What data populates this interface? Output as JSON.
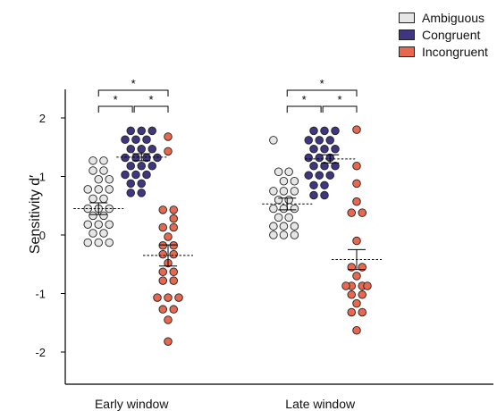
{
  "chart_data": {
    "type": "scatter",
    "ylabel": "Sensitivity d′",
    "ylim": [
      -2.6,
      2.5
    ],
    "yticks": [
      "2",
      "1",
      "0",
      "-1",
      "-2"
    ],
    "groups": [
      "Early window",
      "Late window"
    ],
    "legend": {
      "position": "top-right"
    },
    "significance_markers": [
      "*",
      "*",
      "*",
      "*",
      "*",
      "*"
    ],
    "series": [
      {
        "name": "Ambiguous",
        "color": "#e6e6e6",
        "points": [
          [
            [
              0.25,
              1.27
            ],
            [
              0.5,
              1.27
            ],
            [
              0.25,
              1.1
            ],
            [
              0.5,
              1.1
            ],
            [
              0.38,
              0.95
            ],
            [
              0.63,
              0.95
            ],
            [
              0.13,
              0.78
            ],
            [
              0.38,
              0.78
            ],
            [
              0.63,
              0.78
            ],
            [
              0.25,
              0.62
            ],
            [
              0.5,
              0.62
            ],
            [
              0.13,
              0.45
            ],
            [
              0.38,
              0.45
            ],
            [
              0.63,
              0.45
            ],
            [
              0.25,
              0.33
            ],
            [
              0.5,
              0.33
            ],
            [
              0.13,
              0.18
            ],
            [
              0.38,
              0.18
            ],
            [
              0.63,
              0.18
            ],
            [
              0.25,
              0.03
            ],
            [
              0.5,
              0.03
            ],
            [
              0.13,
              -0.13
            ],
            [
              0.38,
              -0.13
            ],
            [
              0.63,
              -0.13
            ]
          ],
          [
            [
              0.06,
              1.62
            ],
            [
              0.18,
              1.08
            ],
            [
              0.42,
              1.08
            ],
            [
              0.3,
              0.92
            ],
            [
              0.55,
              0.92
            ],
            [
              0.06,
              0.75
            ],
            [
              0.3,
              0.75
            ],
            [
              0.55,
              0.75
            ],
            [
              0.18,
              0.6
            ],
            [
              0.42,
              0.6
            ],
            [
              0.06,
              0.45
            ],
            [
              0.3,
              0.45
            ],
            [
              0.55,
              0.45
            ],
            [
              0.18,
              0.3
            ],
            [
              0.42,
              0.3
            ],
            [
              0.06,
              0.15
            ],
            [
              0.3,
              0.15
            ],
            [
              0.55,
              0.15
            ],
            [
              0.06,
              0.0
            ],
            [
              0.3,
              0.0
            ],
            [
              0.55,
              0.0
            ]
          ]
        ],
        "mean": [
          0.45,
          0.53
        ],
        "sem": [
          0.1,
          0.1
        ]
      },
      {
        "name": "Congruent",
        "color": "#3f3580",
        "points": [
          [
            [
              1.13,
              1.78
            ],
            [
              1.38,
              1.78
            ],
            [
              1.63,
              1.78
            ],
            [
              1.0,
              1.63
            ],
            [
              1.25,
              1.63
            ],
            [
              1.5,
              1.63
            ],
            [
              1.13,
              1.47
            ],
            [
              1.38,
              1.47
            ],
            [
              1.63,
              1.47
            ],
            [
              1.0,
              1.32
            ],
            [
              1.25,
              1.32
            ],
            [
              1.5,
              1.32
            ],
            [
              1.75,
              1.32
            ],
            [
              1.13,
              1.18
            ],
            [
              1.38,
              1.18
            ],
            [
              1.63,
              1.18
            ],
            [
              1.0,
              1.03
            ],
            [
              1.25,
              1.03
            ],
            [
              1.5,
              1.03
            ],
            [
              1.13,
              0.88
            ],
            [
              1.38,
              0.88
            ],
            [
              1.13,
              0.72
            ],
            [
              1.38,
              0.72
            ]
          ],
          [
            [
              1.0,
              1.78
            ],
            [
              1.25,
              1.78
            ],
            [
              1.5,
              1.78
            ],
            [
              0.88,
              1.62
            ],
            [
              1.13,
              1.62
            ],
            [
              1.38,
              1.62
            ],
            [
              1.0,
              1.47
            ],
            [
              1.25,
              1.47
            ],
            [
              1.5,
              1.47
            ],
            [
              0.88,
              1.32
            ],
            [
              1.13,
              1.32
            ],
            [
              1.38,
              1.32
            ],
            [
              1.0,
              1.18
            ],
            [
              1.25,
              1.18
            ],
            [
              1.5,
              1.18
            ],
            [
              0.88,
              1.02
            ],
            [
              1.13,
              1.02
            ],
            [
              1.38,
              1.02
            ],
            [
              1.0,
              0.85
            ],
            [
              1.25,
              0.85
            ],
            [
              1.0,
              0.68
            ],
            [
              1.25,
              0.68
            ]
          ]
        ],
        "mean": [
          1.33,
          1.3
        ],
        "sem": [
          0.06,
          0.07
        ]
      },
      {
        "name": "Incongruent",
        "color": "#e8674f",
        "points": [
          [
            [
              2.0,
              1.68
            ],
            [
              2.0,
              1.43
            ],
            [
              1.88,
              0.43
            ],
            [
              2.13,
              0.43
            ],
            [
              2.13,
              0.28
            ],
            [
              1.88,
              0.13
            ],
            [
              2.13,
              0.13
            ],
            [
              2.0,
              -0.03
            ],
            [
              1.88,
              -0.18
            ],
            [
              2.13,
              -0.18
            ],
            [
              1.88,
              -0.33
            ],
            [
              2.13,
              -0.33
            ],
            [
              2.0,
              -0.48
            ],
            [
              1.88,
              -0.63
            ],
            [
              2.13,
              -0.63
            ],
            [
              1.88,
              -0.78
            ],
            [
              2.13,
              -0.78
            ],
            [
              1.75,
              -1.07
            ],
            [
              2.0,
              -1.07
            ],
            [
              2.25,
              -1.07
            ],
            [
              1.88,
              -1.27
            ],
            [
              2.13,
              -1.27
            ],
            [
              2.0,
              -1.45
            ],
            [
              2.0,
              -1.82
            ]
          ],
          [
            [
              2.0,
              1.8
            ],
            [
              2.0,
              1.18
            ],
            [
              2.0,
              0.88
            ],
            [
              2.0,
              0.57
            ],
            [
              1.88,
              0.38
            ],
            [
              2.13,
              0.38
            ],
            [
              2.0,
              -0.1
            ],
            [
              1.88,
              -0.55
            ],
            [
              2.13,
              -0.55
            ],
            [
              2.0,
              -0.7
            ],
            [
              1.88,
              -0.87
            ],
            [
              2.13,
              -0.87
            ],
            [
              1.75,
              -0.87
            ],
            [
              2.25,
              -0.87
            ],
            [
              1.88,
              -1.02
            ],
            [
              2.13,
              -1.02
            ],
            [
              2.0,
              -1.17
            ],
            [
              1.88,
              -1.32
            ],
            [
              2.13,
              -1.32
            ],
            [
              2.0,
              -1.63
            ]
          ]
        ],
        "mean": [
          -0.35,
          -0.42
        ],
        "sem": [
          0.18,
          0.17
        ]
      }
    ]
  }
}
